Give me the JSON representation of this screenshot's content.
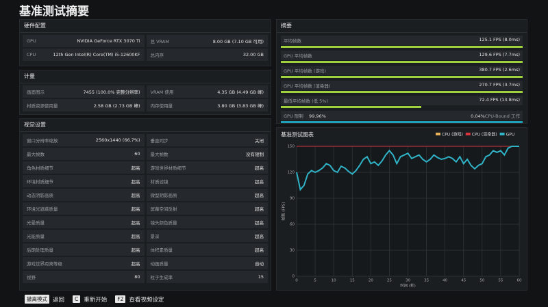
{
  "title": "基准测试摘要",
  "hardware": {
    "title": "硬件配置",
    "rows": [
      [
        "GPU",
        "NVIDIA GeForce RTX 3070 Ti",
        "总 VRAM",
        "8.00 GB (7.10 GB 可用)"
      ],
      [
        "CPU",
        "12th Gen Intel(R) Core(TM) i5-12600KF",
        "总内存",
        "32.00 GB"
      ]
    ]
  },
  "metrics": {
    "title": "计量",
    "rows": [
      [
        "画面图示",
        "7455 (100.0% 完整分辨率)",
        "VRAM 使用",
        "4.35 GB (4.49 GB 峰)"
      ],
      [
        "材质资源使用量",
        "2.58 GB (2.73 GB 峰)",
        "内存使用量",
        "3.80 GB (3.83 GB 峰)"
      ]
    ]
  },
  "visual": {
    "title": "视觉设置",
    "rows": [
      [
        "窗口分辨率缩放",
        "2560x1440 (66.7%)",
        "垂直同步",
        "关闭"
      ],
      [
        "最大帧数",
        "60",
        "最大帧数",
        "没有限制"
      ],
      [
        "角色材质细节",
        "超高",
        "游戏世界材质细节",
        "超高"
      ],
      [
        "环境材质细节",
        "超高",
        "材质滤镜",
        "超高"
      ],
      [
        "动态阴影画质",
        "超高",
        "微型阴影画质",
        "超高"
      ],
      [
        "环境光遮蔽质量",
        "超高",
        "屏幕空间反射",
        "超高"
      ],
      [
        "光晕质量",
        "超高",
        "镜头颜色质量",
        "超高"
      ],
      [
        "光能质量",
        "超高",
        "景深",
        "超高"
      ],
      [
        "后期处理质量",
        "超高",
        "体积素质量",
        "超高"
      ],
      [
        "游戏世界距离等级",
        "超高",
        "动画质量",
        "自动"
      ],
      [
        "视野",
        "80",
        "粒子生成率",
        "15"
      ]
    ]
  },
  "summary": {
    "title": "摘要",
    "rows": [
      {
        "label": "平均帧数",
        "value": "125.1 FPS (8.0ms)"
      },
      {
        "label": "GPU 平均帧数",
        "value": "129.6 FPS (7.7ms)"
      },
      {
        "label": "GPU 平均帧数 (游戏)",
        "value": "380.7 FPS (2.6ms)"
      },
      {
        "label": "GPU 平均帧数 (渲染器)",
        "value": "270.7 FPS (3.7ms)"
      },
      {
        "label": "最低平均帧数 (低 5%)",
        "value": "72.4 FPS (13.8ms)"
      }
    ],
    "gpu_limit": {
      "label": "GPU 限制",
      "left": "99.96%",
      "right": "0.04%",
      "right_label": "CPU-Bound 工作"
    }
  },
  "chart_data": {
    "type": "line",
    "title": "基准测试图表",
    "x_label": "时间 (秒)",
    "y_label": "帧数 (FPS)",
    "x": [
      0,
      1,
      2,
      3,
      4,
      5,
      6,
      7,
      8,
      9,
      10,
      11,
      12,
      13,
      14,
      15,
      16,
      17,
      18,
      19,
      20,
      21,
      22,
      23,
      24,
      25,
      26,
      27,
      28,
      29,
      30,
      31,
      32,
      33,
      34,
      35,
      36,
      37,
      38,
      39,
      40,
      41,
      42,
      43,
      44,
      45,
      46,
      47,
      48,
      49,
      50,
      51,
      52,
      53,
      54,
      55,
      56,
      57,
      58,
      59,
      60
    ],
    "series": [
      {
        "name": "CPU (游戏)",
        "color": "#e8b15a",
        "values": [
          null,
          null,
          null,
          null,
          null,
          null,
          null,
          null,
          null,
          null,
          null,
          null,
          null,
          null,
          null,
          null,
          null,
          null,
          null,
          null,
          null,
          null,
          null,
          null,
          null,
          null,
          null,
          null,
          null,
          null,
          null,
          null,
          null,
          null,
          null,
          null,
          null,
          null,
          null,
          null,
          null,
          null,
          null,
          null,
          null,
          null,
          null,
          null,
          null,
          null,
          null,
          null,
          null,
          null,
          null,
          null,
          null,
          null,
          null,
          null,
          null
        ]
      },
      {
        "name": "CPU (渲染器)",
        "color": "#d8353f",
        "values": [
          150,
          150,
          150,
          150,
          150,
          150,
          150,
          150,
          150,
          150,
          150,
          150,
          150,
          150,
          150,
          150,
          150,
          150,
          150,
          150,
          150,
          150,
          150,
          150,
          150,
          150,
          150,
          150,
          150,
          150,
          150,
          150,
          150,
          150,
          150,
          150,
          150,
          150,
          150,
          150,
          150,
          150,
          150,
          150,
          150,
          150,
          150,
          150,
          150,
          150,
          150,
          150,
          150,
          150,
          150,
          150,
          150,
          150,
          150,
          150,
          150
        ]
      },
      {
        "name": "GPU",
        "color": "#2fb3c7",
        "values": [
          120,
          100,
          105,
          118,
          122,
          120,
          122,
          125,
          130,
          128,
          122,
          120,
          127,
          125,
          121,
          118,
          122,
          128,
          135,
          138,
          130,
          132,
          128,
          133,
          140,
          145,
          140,
          130,
          138,
          140,
          142,
          136,
          138,
          140,
          135,
          132,
          135,
          140,
          137,
          135,
          136,
          138,
          136,
          132,
          138,
          130,
          135,
          128,
          124,
          128,
          130,
          138,
          140,
          145,
          143,
          145,
          140,
          148,
          150,
          150,
          150
        ]
      }
    ],
    "xlim": [
      0,
      60
    ],
    "ylim": [
      0,
      150
    ],
    "xticks": [
      0,
      5,
      10,
      15,
      20,
      25,
      30,
      35,
      40,
      45,
      50,
      55,
      60
    ],
    "yticks": [
      0,
      30,
      60,
      90,
      120,
      150
    ],
    "grid": true
  },
  "footer": [
    {
      "key": "撤离模式",
      "label": "返回"
    },
    {
      "key": "C",
      "label": "重新开始"
    },
    {
      "key": "F2",
      "label": "查看视频设定"
    }
  ]
}
